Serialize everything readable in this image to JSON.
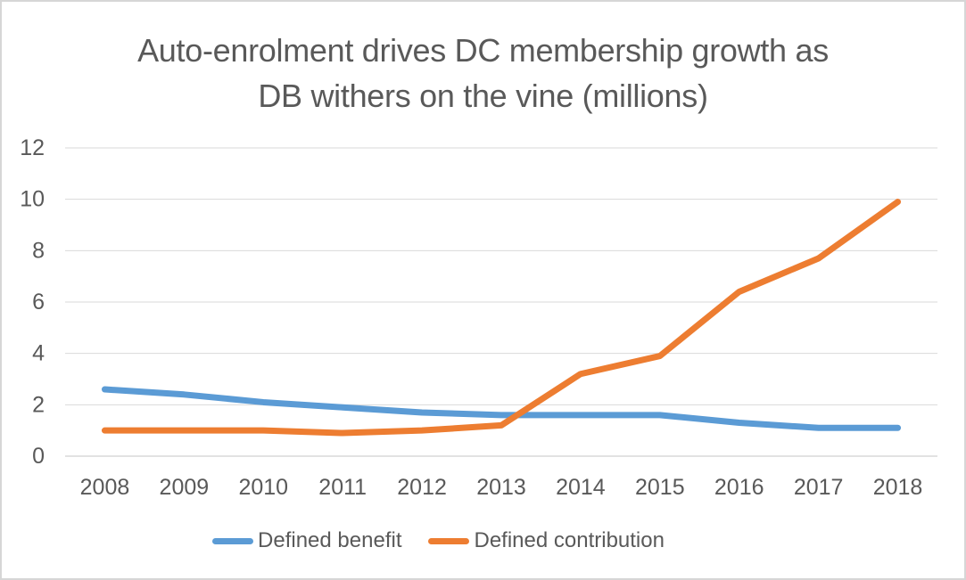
{
  "chart_data": {
    "type": "line",
    "title": "Auto-enrolment drives DC membership growth as\nDB withers on the vine (millions)",
    "categories": [
      "2008",
      "2009",
      "2010",
      "2011",
      "2012",
      "2013",
      "2014",
      "2015",
      "2016",
      "2017",
      "2018"
    ],
    "series": [
      {
        "id": "defined-benefit",
        "name": "Defined benefit",
        "color": "#5B9BD5",
        "values": [
          2.6,
          2.4,
          2.1,
          1.9,
          1.7,
          1.6,
          1.6,
          1.6,
          1.3,
          1.1,
          1.1
        ]
      },
      {
        "id": "defined-contribution",
        "name": "Defined contribution",
        "color": "#ED7D31",
        "values": [
          1.0,
          1.0,
          1.0,
          0.9,
          1.0,
          1.2,
          3.2,
          3.9,
          6.4,
          7.7,
          9.9
        ]
      }
    ],
    "xlabel": "",
    "ylabel": "",
    "ylim": [
      0,
      12
    ],
    "yticks": [
      0,
      2,
      4,
      6,
      8,
      10,
      12
    ],
    "grid": "horizontal",
    "legend_position": "bottom",
    "text_color": "#595959",
    "gridline_color": "#D9D9D9"
  }
}
